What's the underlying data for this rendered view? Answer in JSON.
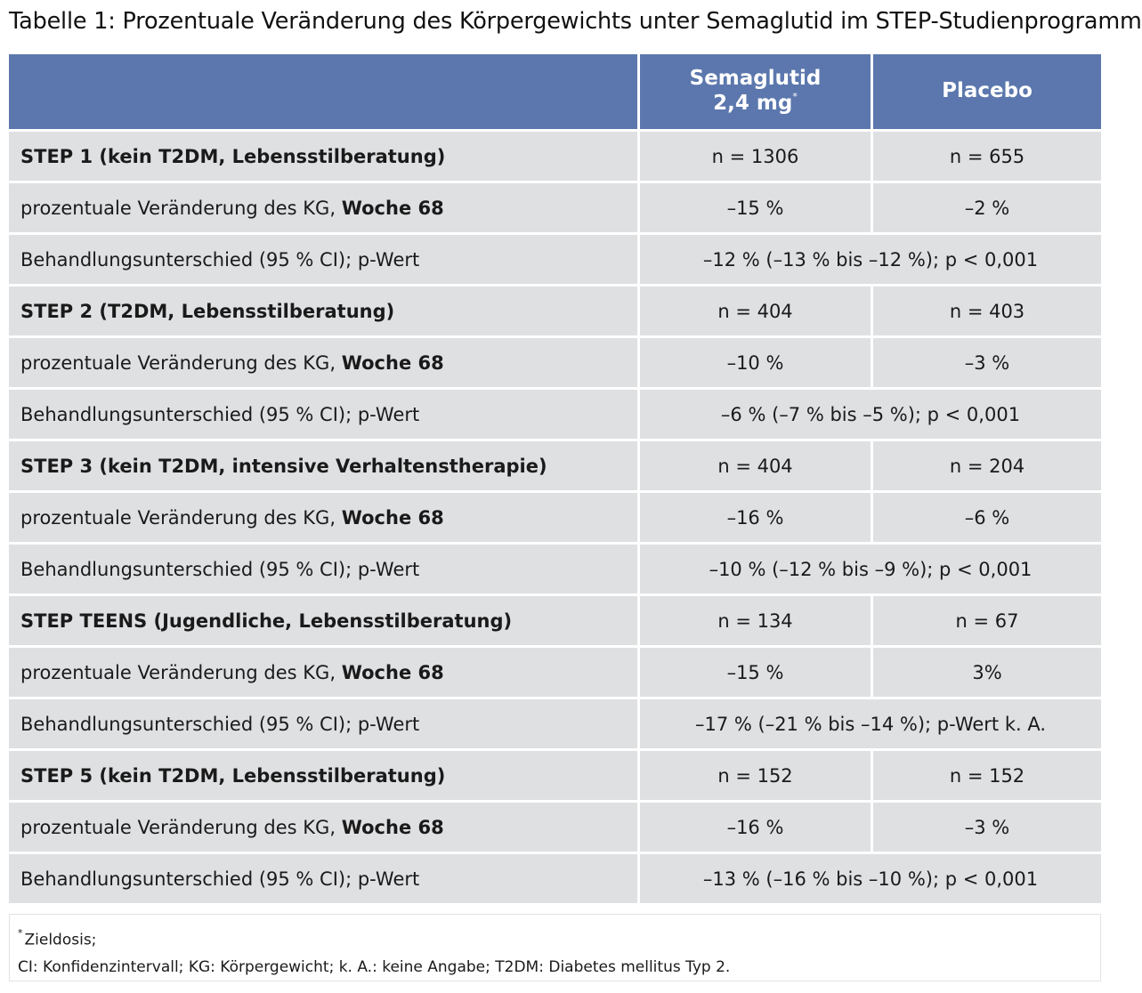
{
  "title": "Tabelle 1: Prozentuale Veränderung des Körpergewichts unter Semaglutid im STEP-Studienprogramm",
  "header": {
    "col1": "",
    "col2_line1": "Semaglutid",
    "col2_line2": "2,4 mg",
    "col2_sup": "*",
    "col3": "Placebo"
  },
  "groups": [
    {
      "name": "STEP 1 (kein T2DM, Lebensstilberatung)",
      "n_sema": "n = 1306",
      "n_placebo": "n = 655",
      "change_label": "prozentuale Veränderung des KG, ",
      "change_label_bold": "Woche 68",
      "change_sema": "–15 %",
      "change_placebo": "–2 %",
      "diff_label": "Behandlungsunterschied (95 % CI); p-Wert",
      "diff_value": "–12 % (–13 % bis –12 %); p < 0,001"
    },
    {
      "name": "STEP 2 (T2DM, Lebensstilberatung)",
      "n_sema": "n = 404",
      "n_placebo": "n = 403",
      "change_label": "prozentuale Veränderung des KG, ",
      "change_label_bold": "Woche 68",
      "change_sema": "–10 %",
      "change_placebo": "–3 %",
      "diff_label": "Behandlungsunterschied (95 % CI); p-Wert",
      "diff_value": "–6 % (–7 % bis –5 %); p < 0,001"
    },
    {
      "name": "STEP 3 (kein T2DM, intensive Verhaltenstherapie)",
      "n_sema": "n = 404",
      "n_placebo": "n = 204",
      "change_label": "prozentuale Veränderung des KG, ",
      "change_label_bold": "Woche 68",
      "change_sema": "–16 %",
      "change_placebo": "–6 %",
      "diff_label": "Behandlungsunterschied (95 % CI); p-Wert",
      "diff_value": "–10 % (–12 % bis –9 %); p < 0,001"
    },
    {
      "name": "STEP TEENS (Jugendliche, Lebensstilberatung)",
      "n_sema": "n = 134",
      "n_placebo": "n = 67",
      "change_label": "prozentuale Veränderung des KG, ",
      "change_label_bold": "Woche 68",
      "change_sema": "–15 %",
      "change_placebo": "3%",
      "diff_label": "Behandlungsunterschied (95 % CI); p-Wert",
      "diff_value": "–17 % (–21 % bis –14 %); p-Wert k. A."
    },
    {
      "name": "STEP 5 (kein T2DM, Lebensstilberatung)",
      "n_sema": "n = 152",
      "n_placebo": "n = 152",
      "change_label": "prozentuale Veränderung des KG, ",
      "change_label_bold": "Woche 68",
      "change_sema": "–16 %",
      "change_placebo": "–3 %",
      "diff_label": "Behandlungsunterschied (95 % CI); p-Wert",
      "diff_value": "–13 % (–16 % bis –10 %); p < 0,001"
    }
  ],
  "footnote": {
    "sup": "*",
    "line1": "Zieldosis;",
    "line2": "CI: Konfidenzintervall; KG: Körpergewicht; k. A.: keine Angabe; T2DM: Diabetes mellitus Typ 2."
  },
  "colors": {
    "header_bg": "#5b77ad",
    "row_bg": "#dfe0e2"
  }
}
